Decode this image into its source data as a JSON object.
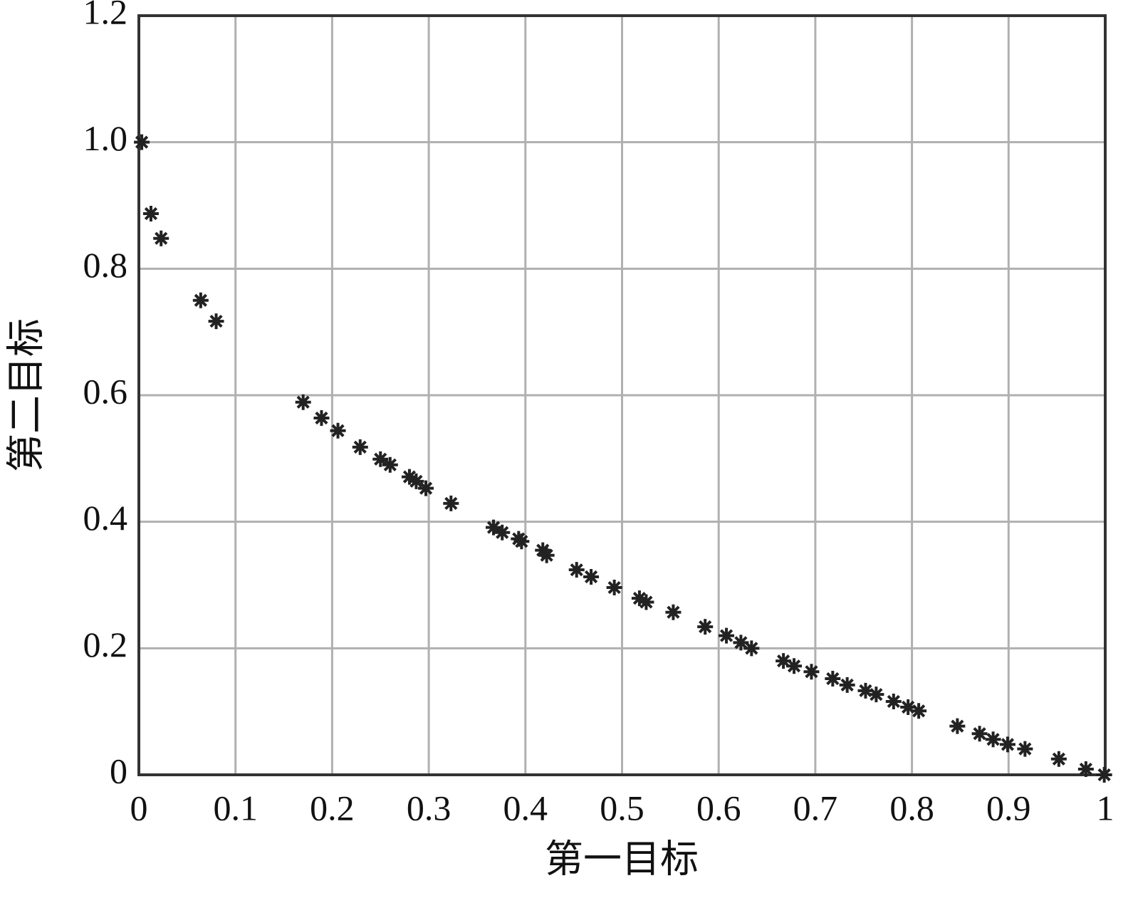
{
  "chart_data": {
    "type": "scatter",
    "xlabel": "第一目标",
    "ylabel": "第二目标",
    "xlim": [
      0,
      1
    ],
    "ylim": [
      0,
      1.2
    ],
    "xticks": [
      0,
      0.1,
      0.2,
      0.3,
      0.4,
      0.5,
      0.6,
      0.7,
      0.8,
      0.9,
      1
    ],
    "yticks": [
      0,
      0.2,
      0.4,
      0.6,
      0.8,
      {
        "value": 1,
        "label": "1.0"
      },
      1.2
    ],
    "grid": true,
    "color": "#222222",
    "marker": "asterisk",
    "x": [
      0.003,
      0.0125,
      0.023,
      0.064,
      0.08,
      0.17,
      0.189,
      0.206,
      0.229,
      0.25,
      0.26,
      0.28,
      0.287,
      0.297,
      0.323,
      0.367,
      0.376,
      0.393,
      0.396,
      0.418,
      0.422,
      0.453,
      0.468,
      0.492,
      0.518,
      0.525,
      0.553,
      0.586,
      0.608,
      0.623,
      0.634,
      0.667,
      0.678,
      0.696,
      0.718,
      0.733,
      0.752,
      0.763,
      0.781,
      0.796,
      0.807,
      0.847,
      0.87,
      0.884,
      0.899,
      0.917,
      0.952,
      0.98,
      0.999
    ],
    "values": [
      1.0,
      0.887,
      0.848,
      0.75,
      0.717,
      0.589,
      0.564,
      0.544,
      0.518,
      0.499,
      0.49,
      0.471,
      0.464,
      0.453,
      0.429,
      0.391,
      0.383,
      0.373,
      0.369,
      0.355,
      0.347,
      0.324,
      0.313,
      0.296,
      0.279,
      0.273,
      0.257,
      0.234,
      0.22,
      0.209,
      0.2,
      0.18,
      0.172,
      0.163,
      0.152,
      0.142,
      0.133,
      0.127,
      0.116,
      0.107,
      0.101,
      0.077,
      0.065,
      0.056,
      0.048,
      0.041,
      0.025,
      0.009,
      0.0
    ]
  }
}
